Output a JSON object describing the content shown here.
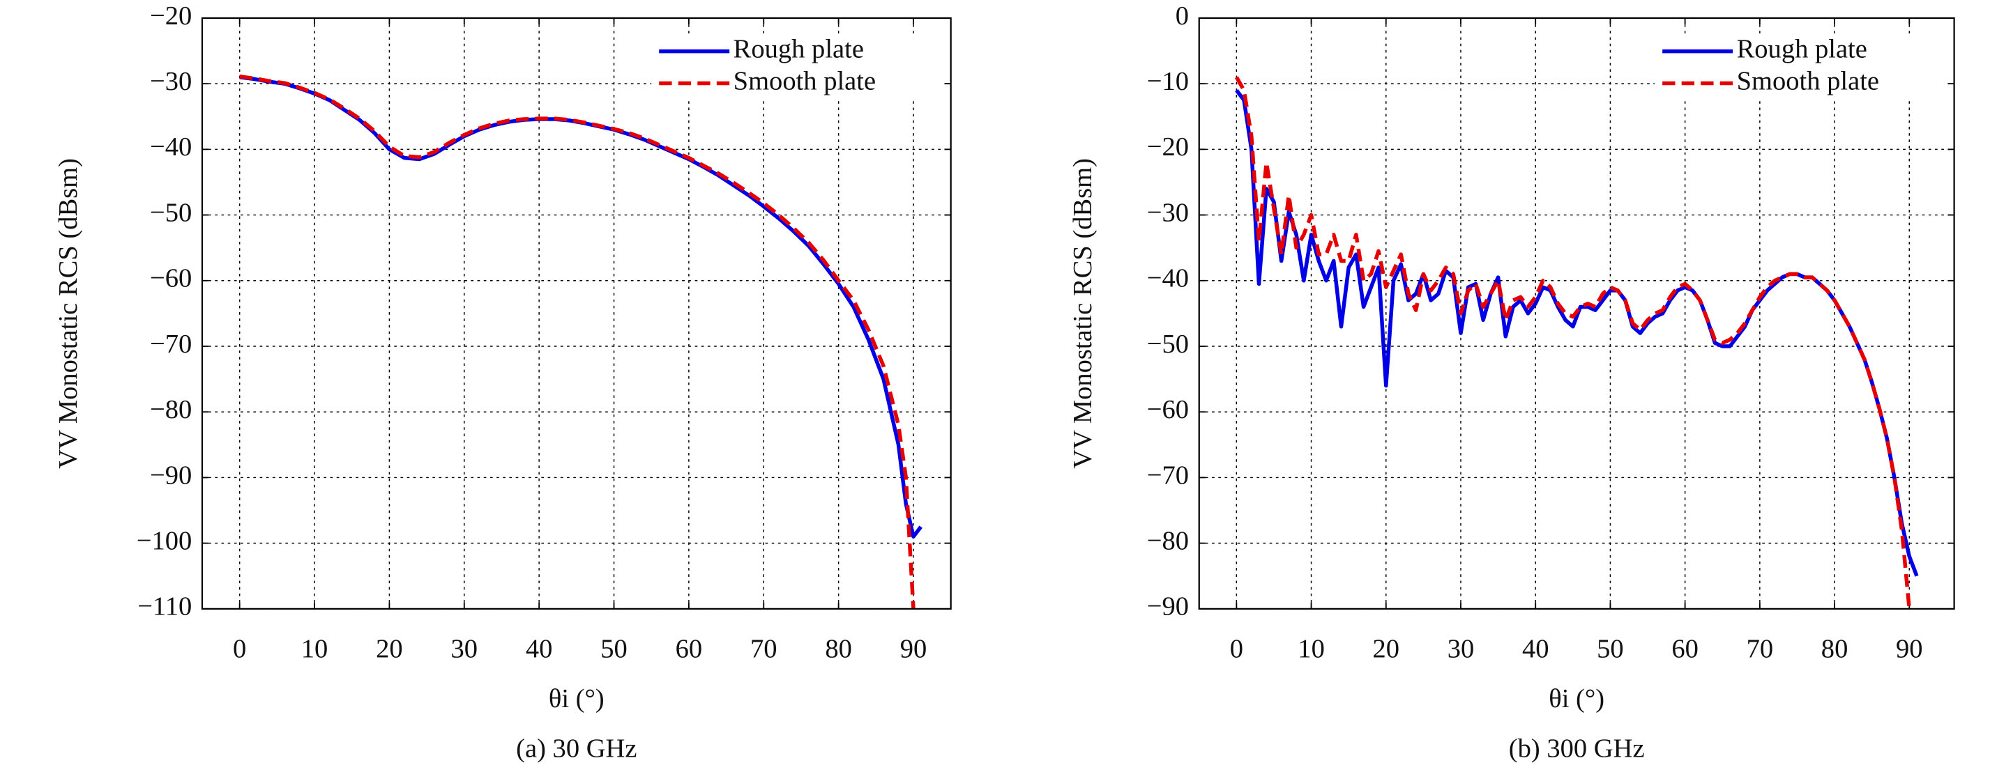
{
  "chart_data": [
    {
      "type": "line",
      "caption": "(a) 30 GHz",
      "xlabel": "θi (°)",
      "ylabel": "VV Monostatic RCS (dBsm)",
      "xlim": [
        -5,
        95
      ],
      "ylim": [
        -110,
        -20
      ],
      "xticks": [
        0,
        10,
        20,
        30,
        40,
        50,
        60,
        70,
        80,
        90
      ],
      "yticks": [
        {
          "value": -110,
          "label": "−110"
        },
        {
          "value": -100,
          "label": "−100"
        },
        {
          "value": -90,
          "label": "−90"
        },
        {
          "value": -80,
          "label": "−80"
        },
        {
          "value": -70,
          "label": "−70"
        },
        {
          "value": -60,
          "label": "−60"
        },
        {
          "value": -50,
          "label": "−50"
        },
        {
          "value": -40,
          "label": "−40"
        },
        {
          "value": -30,
          "label": "−30"
        },
        {
          "value": -20,
          "label": "−20"
        }
      ],
      "grid": true,
      "legend": "upper right",
      "series": [
        {
          "name": "Rough plate",
          "color": "#0000e6",
          "dash": "solid",
          "x": [
            0,
            2,
            4,
            6,
            8,
            10,
            12,
            14,
            16,
            18,
            20,
            22,
            24,
            26,
            28,
            30,
            32,
            34,
            36,
            38,
            40,
            42,
            44,
            46,
            48,
            50,
            52,
            54,
            56,
            58,
            60,
            62,
            64,
            66,
            68,
            70,
            72,
            74,
            76,
            78,
            80,
            82,
            84,
            86,
            88,
            89,
            90,
            91
          ],
          "values": [
            -29,
            -29.3,
            -29.7,
            -30,
            -30.7,
            -31.5,
            -32.5,
            -34,
            -35.5,
            -37.5,
            -40,
            -41.3,
            -41.5,
            -40.7,
            -39.3,
            -38,
            -37,
            -36.3,
            -35.8,
            -35.5,
            -35.4,
            -35.4,
            -35.6,
            -36,
            -36.5,
            -37,
            -37.7,
            -38.5,
            -39.5,
            -40.5,
            -41.5,
            -42.7,
            -44,
            -45.5,
            -47,
            -48.7,
            -50.5,
            -52.5,
            -54.7,
            -57.5,
            -60.5,
            -64,
            -69,
            -75,
            -85,
            -94,
            -99,
            -97.5
          ]
        },
        {
          "name": "Smooth plate",
          "color": "#e60000",
          "dash": "dashed",
          "x": [
            0,
            2,
            4,
            6,
            8,
            10,
            12,
            14,
            16,
            18,
            20,
            22,
            24,
            26,
            28,
            30,
            32,
            34,
            36,
            38,
            40,
            42,
            44,
            46,
            48,
            50,
            52,
            54,
            56,
            58,
            60,
            62,
            64,
            66,
            68,
            70,
            72,
            74,
            76,
            78,
            80,
            82,
            84,
            86,
            88,
            89,
            89.5,
            90
          ],
          "values": [
            -28.9,
            -29.2,
            -29.6,
            -29.9,
            -30.6,
            -31.4,
            -32.4,
            -33.8,
            -35.3,
            -37.2,
            -39.6,
            -41,
            -41.2,
            -40.4,
            -39,
            -37.8,
            -36.8,
            -36.1,
            -35.6,
            -35.4,
            -35.3,
            -35.3,
            -35.5,
            -35.9,
            -36.4,
            -36.9,
            -37.5,
            -38.3,
            -39.3,
            -40.3,
            -41.3,
            -42.5,
            -43.7,
            -45.1,
            -46.6,
            -48.2,
            -50,
            -52,
            -54.2,
            -56.9,
            -60,
            -63,
            -67.5,
            -73,
            -82,
            -90,
            -100,
            -110
          ]
        }
      ]
    },
    {
      "type": "line",
      "caption": "(b) 300 GHz",
      "xlabel": "θi (°)",
      "ylabel": "VV Monostatic RCS (dBsm)",
      "xlim": [
        -5,
        96
      ],
      "ylim": [
        -90,
        0
      ],
      "xticks": [
        0,
        10,
        20,
        30,
        40,
        50,
        60,
        70,
        80,
        90
      ],
      "yticks": [
        {
          "value": -90,
          "label": "−90"
        },
        {
          "value": -80,
          "label": "−80"
        },
        {
          "value": -70,
          "label": "−70"
        },
        {
          "value": -60,
          "label": "−60"
        },
        {
          "value": -50,
          "label": "−50"
        },
        {
          "value": -40,
          "label": "−40"
        },
        {
          "value": -30,
          "label": "−30"
        },
        {
          "value": -20,
          "label": "−20"
        },
        {
          "value": -10,
          "label": "−10"
        },
        0
      ],
      "grid": true,
      "legend": "upper right",
      "series": [
        {
          "name": "Rough plate",
          "color": "#0000e6",
          "dash": "solid",
          "x": [
            0,
            1,
            2,
            3,
            4,
            5,
            6,
            7,
            8,
            9,
            10,
            11,
            12,
            13,
            14,
            15,
            16,
            17,
            18,
            19,
            20,
            21,
            22,
            23,
            24,
            25,
            26,
            27,
            28,
            29,
            30,
            31,
            32,
            33,
            34,
            35,
            36,
            37,
            38,
            39,
            40,
            41,
            42,
            43,
            44,
            45,
            46,
            47,
            48,
            49,
            50,
            51,
            52,
            53,
            54,
            55,
            56,
            57,
            58,
            59,
            60,
            61,
            62,
            63,
            64,
            65,
            66,
            67,
            68,
            69,
            70,
            71,
            72,
            73,
            74,
            75,
            76,
            77,
            78,
            79,
            80,
            81,
            82,
            83,
            84,
            85,
            86,
            87,
            88,
            89,
            90,
            91
          ],
          "values": [
            -11,
            -12.5,
            -20,
            -40.5,
            -26,
            -28,
            -37,
            -29.5,
            -33,
            -40,
            -33,
            -37,
            -40,
            -37,
            -47,
            -38,
            -36,
            -44,
            -41,
            -38,
            -56,
            -40,
            -37.5,
            -43,
            -42,
            -39,
            -43,
            -42,
            -38.5,
            -39.5,
            -48,
            -41,
            -40.5,
            -46,
            -42,
            -39.5,
            -48.5,
            -44,
            -43,
            -45,
            -43.5,
            -41,
            -41.5,
            -44,
            -46,
            -47,
            -44,
            -44,
            -44.5,
            -43,
            -41.5,
            -41.5,
            -43,
            -47,
            -48,
            -46.5,
            -45.5,
            -45,
            -43,
            -41.5,
            -41,
            -41.5,
            -43,
            -46,
            -49.5,
            -50,
            -50,
            -48.5,
            -47,
            -44.5,
            -43,
            -41.5,
            -40.5,
            -39.5,
            -39,
            -39,
            -39.5,
            -39.5,
            -40.5,
            -41.5,
            -43,
            -45,
            -47,
            -49.5,
            -52,
            -55.5,
            -59.5,
            -64,
            -70,
            -77,
            -82,
            -85
          ]
        },
        {
          "name": "Smooth plate",
          "color": "#e60000",
          "dash": "dashed",
          "x": [
            0,
            1,
            2,
            3,
            4,
            5,
            6,
            7,
            8,
            9,
            10,
            11,
            12,
            13,
            14,
            15,
            16,
            17,
            18,
            19,
            20,
            21,
            22,
            23,
            24,
            25,
            26,
            27,
            28,
            29,
            30,
            31,
            32,
            33,
            34,
            35,
            36,
            37,
            38,
            39,
            40,
            41,
            42,
            43,
            44,
            45,
            46,
            47,
            48,
            49,
            50,
            51,
            52,
            53,
            54,
            55,
            56,
            57,
            58,
            59,
            60,
            61,
            62,
            63,
            64,
            65,
            66,
            67,
            68,
            69,
            70,
            71,
            72,
            73,
            74,
            75,
            76,
            77,
            78,
            79,
            80,
            81,
            82,
            83,
            84,
            85,
            86,
            87,
            88,
            89,
            90
          ],
          "values": [
            -9,
            -11,
            -18,
            -34,
            -22,
            -29,
            -36,
            -27,
            -35,
            -33,
            -30,
            -36,
            -36,
            -33,
            -37,
            -37,
            -33,
            -40,
            -39,
            -35.5,
            -41,
            -38.5,
            -36,
            -42,
            -44.5,
            -39,
            -41.5,
            -40,
            -38,
            -39,
            -45,
            -41.5,
            -40.5,
            -44,
            -42,
            -40,
            -46,
            -43,
            -42.5,
            -44,
            -42.5,
            -40,
            -41,
            -43.5,
            -45,
            -45.5,
            -44,
            -43.5,
            -44,
            -42,
            -41,
            -41.5,
            -43,
            -46.5,
            -47.5,
            -46,
            -45,
            -44.5,
            -42.5,
            -41,
            -40.5,
            -41.5,
            -43,
            -46,
            -49,
            -49.5,
            -49,
            -48,
            -46.5,
            -44.5,
            -42.5,
            -41,
            -40,
            -39.5,
            -39,
            -39,
            -39.5,
            -39.5,
            -40.5,
            -41.5,
            -43,
            -45,
            -47,
            -49.5,
            -52,
            -55.5,
            -59.5,
            -64,
            -70,
            -78,
            -90
          ]
        }
      ]
    }
  ]
}
